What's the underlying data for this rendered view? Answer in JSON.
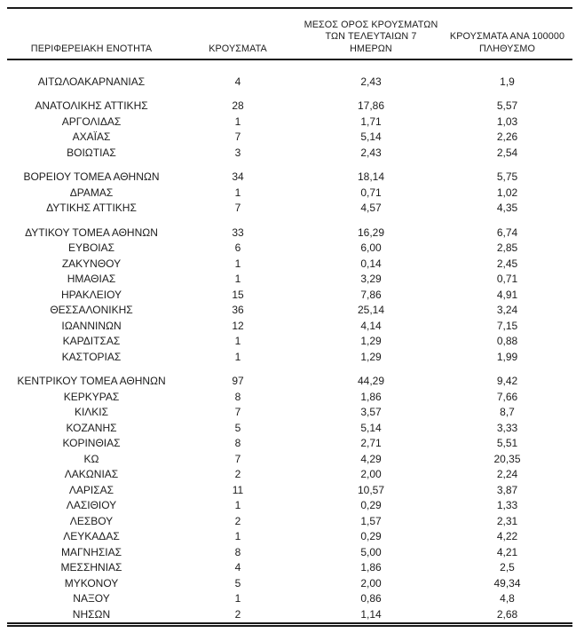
{
  "colors": {
    "text": "#1c1c1c",
    "rule": "#1a1a1a",
    "background": "#ffffff"
  },
  "table": {
    "columns": [
      {
        "key": "region",
        "label": "ΠΕΡΙΦΕΡΕΙΑΚΗ ΕΝΟΤΗΤΑ"
      },
      {
        "key": "cases",
        "label": "ΚΡΟΥΣΜΑΤΑ"
      },
      {
        "key": "avg7",
        "label": "ΜΕΣΟΣ ΟΡΟΣ ΚΡΟΥΣΜΑΤΩΝ\nΤΩΝ ΤΕΛΕΥΤΑΙΩΝ 7\nΗΜΕΡΩΝ"
      },
      {
        "key": "per100k",
        "label": "ΚΡΟΥΣΜΑΤΑ ΑΝΑ 100000\nΠΛΗΘΥΣΜΟ"
      }
    ],
    "rows": [
      {
        "region": "ΑΙΤΩΛΟΑΚΑΡΝΑΝΙΑΣ",
        "cases": "4",
        "avg7": "2,43",
        "per100k": "1,9",
        "gap_after": true
      },
      {
        "region": "ΑΝΑΤΟΛΙΚΗΣ ΑΤΤΙΚΗΣ",
        "cases": "28",
        "avg7": "17,86",
        "per100k": "5,57",
        "gap_after": false
      },
      {
        "region": "ΑΡΓΟΛΙΔΑΣ",
        "cases": "1",
        "avg7": "1,71",
        "per100k": "1,03",
        "gap_after": false
      },
      {
        "region": "ΑΧΑΪΑΣ",
        "cases": "7",
        "avg7": "5,14",
        "per100k": "2,26",
        "gap_after": false
      },
      {
        "region": "ΒΟΙΩΤΙΑΣ",
        "cases": "3",
        "avg7": "2,43",
        "per100k": "2,54",
        "gap_after": true
      },
      {
        "region": "ΒΟΡΕΙΟΥ ΤΟΜΕΑ ΑΘΗΝΩΝ",
        "cases": "34",
        "avg7": "18,14",
        "per100k": "5,75",
        "gap_after": false
      },
      {
        "region": "ΔΡΑΜΑΣ",
        "cases": "1",
        "avg7": "0,71",
        "per100k": "1,02",
        "gap_after": false
      },
      {
        "region": "ΔΥΤΙΚΗΣ ΑΤΤΙΚΗΣ",
        "cases": "7",
        "avg7": "4,57",
        "per100k": "4,35",
        "gap_after": true
      },
      {
        "region": "ΔΥΤΙΚΟΥ ΤΟΜΕΑ ΑΘΗΝΩΝ",
        "cases": "33",
        "avg7": "16,29",
        "per100k": "6,74",
        "gap_after": false
      },
      {
        "region": "ΕΥΒΟΙΑΣ",
        "cases": "6",
        "avg7": "6,00",
        "per100k": "2,85",
        "gap_after": false
      },
      {
        "region": "ΖΑΚΥΝΘΟΥ",
        "cases": "1",
        "avg7": "0,14",
        "per100k": "2,45",
        "gap_after": false
      },
      {
        "region": "ΗΜΑΘΙΑΣ",
        "cases": "1",
        "avg7": "3,29",
        "per100k": "0,71",
        "gap_after": false
      },
      {
        "region": "ΗΡΑΚΛΕΙΟΥ",
        "cases": "15",
        "avg7": "7,86",
        "per100k": "4,91",
        "gap_after": false
      },
      {
        "region": "ΘΕΣΣΑΛΟΝΙΚΗΣ",
        "cases": "36",
        "avg7": "25,14",
        "per100k": "3,24",
        "gap_after": false
      },
      {
        "region": "ΙΩΑΝΝΙΝΩΝ",
        "cases": "12",
        "avg7": "4,14",
        "per100k": "7,15",
        "gap_after": false
      },
      {
        "region": "ΚΑΡΔΙΤΣΑΣ",
        "cases": "1",
        "avg7": "1,29",
        "per100k": "0,88",
        "gap_after": false
      },
      {
        "region": "ΚΑΣΤΟΡΙΑΣ",
        "cases": "1",
        "avg7": "1,29",
        "per100k": "1,99",
        "gap_after": true
      },
      {
        "region": "ΚΕΝΤΡΙΚΟΥ ΤΟΜΕΑ ΑΘΗΝΩΝ",
        "cases": "97",
        "avg7": "44,29",
        "per100k": "9,42",
        "gap_after": false
      },
      {
        "region": "ΚΕΡΚΥΡΑΣ",
        "cases": "8",
        "avg7": "1,86",
        "per100k": "7,66",
        "gap_after": false
      },
      {
        "region": "ΚΙΛΚΙΣ",
        "cases": "7",
        "avg7": "3,57",
        "per100k": "8,7",
        "gap_after": false
      },
      {
        "region": "ΚΟΖΑΝΗΣ",
        "cases": "5",
        "avg7": "5,14",
        "per100k": "3,33",
        "gap_after": false
      },
      {
        "region": "ΚΟΡΙΝΘΙΑΣ",
        "cases": "8",
        "avg7": "2,71",
        "per100k": "5,51",
        "gap_after": false
      },
      {
        "region": "ΚΩ",
        "cases": "7",
        "avg7": "4,29",
        "per100k": "20,35",
        "gap_after": false
      },
      {
        "region": "ΛΑΚΩΝΙΑΣ",
        "cases": "2",
        "avg7": "2,00",
        "per100k": "2,24",
        "gap_after": false
      },
      {
        "region": "ΛΑΡΙΣΑΣ",
        "cases": "11",
        "avg7": "10,57",
        "per100k": "3,87",
        "gap_after": false
      },
      {
        "region": "ΛΑΣΙΘΙΟΥ",
        "cases": "1",
        "avg7": "0,29",
        "per100k": "1,33",
        "gap_after": false
      },
      {
        "region": "ΛΕΣΒΟΥ",
        "cases": "2",
        "avg7": "1,57",
        "per100k": "2,31",
        "gap_after": false
      },
      {
        "region": "ΛΕΥΚΑΔΑΣ",
        "cases": "1",
        "avg7": "0,29",
        "per100k": "4,22",
        "gap_after": false
      },
      {
        "region": "ΜΑΓΝΗΣΙΑΣ",
        "cases": "8",
        "avg7": "5,00",
        "per100k": "4,21",
        "gap_after": false
      },
      {
        "region": "ΜΕΣΣΗΝΙΑΣ",
        "cases": "4",
        "avg7": "1,86",
        "per100k": "2,5",
        "gap_after": false
      },
      {
        "region": "ΜΥΚΟΝΟΥ",
        "cases": "5",
        "avg7": "2,00",
        "per100k": "49,34",
        "gap_after": false
      },
      {
        "region": "ΝΑΞΟΥ",
        "cases": "1",
        "avg7": "0,86",
        "per100k": "4,8",
        "gap_after": false
      },
      {
        "region": "ΝΗΣΩΝ",
        "cases": "2",
        "avg7": "1,14",
        "per100k": "2,68",
        "gap_after": false
      }
    ]
  }
}
